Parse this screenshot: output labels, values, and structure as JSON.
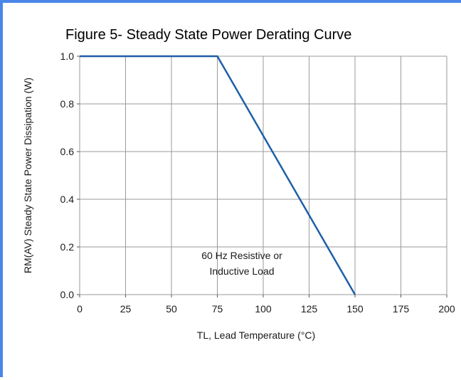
{
  "chart_data": {
    "type": "line",
    "title": "Figure 5- Steady State Power Derating Curve",
    "xlabel": "TL, Lead Temperature (°C)",
    "ylabel": "RM(AV) Steady State Power Dissipation (W)",
    "xlim": [
      0,
      200
    ],
    "ylim": [
      0,
      1.0
    ],
    "xticks": [
      0,
      25,
      50,
      75,
      100,
      125,
      150,
      175,
      200
    ],
    "xtick_labels": [
      "0",
      "25",
      "50",
      "75",
      "100",
      "125",
      "150",
      "175",
      "200"
    ],
    "yticks": [
      0,
      0.2,
      0.4,
      0.6,
      0.8,
      1.0
    ],
    "ytick_labels": [
      "0.0",
      "0.2",
      "0.4",
      "0.6",
      "0.8",
      "1.0"
    ],
    "grid": true,
    "series": [
      {
        "x": [
          0,
          75,
          150
        ],
        "y": [
          1.0,
          1.0,
          0.0
        ],
        "color": "#1f5fa8"
      }
    ],
    "annotation": {
      "lines": [
        "60 Hz Resistive or",
        "Inductive Load"
      ],
      "x": 100,
      "y": 0.12
    }
  }
}
